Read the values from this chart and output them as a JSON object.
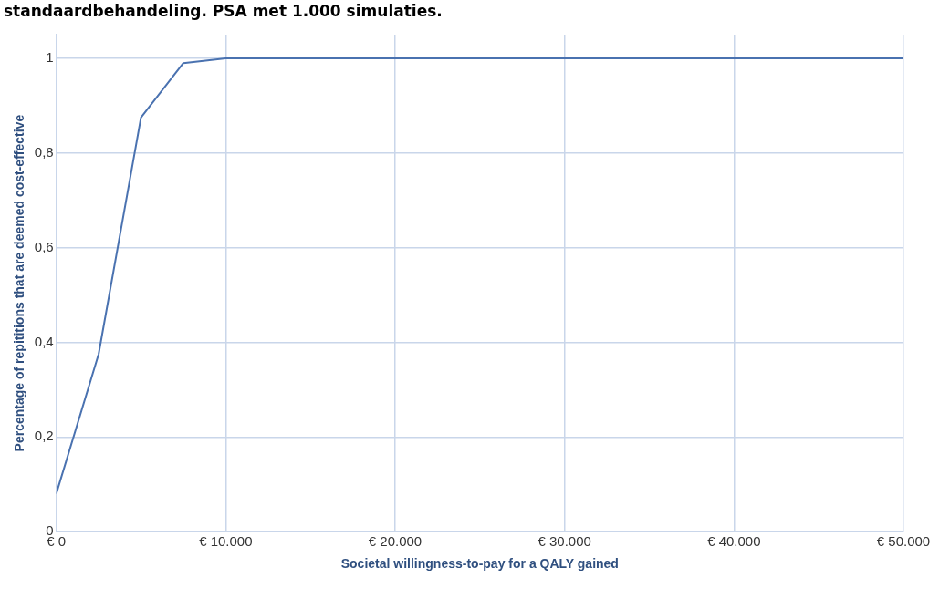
{
  "chart_data": {
    "type": "line",
    "title": "standaardbehandeling. PSA met 1.000 simulaties.",
    "xlabel": "Societal willingness-to-pay for a QALY gained",
    "ylabel": "Percentage of repititions that are deemed cost-effective",
    "x": [
      0,
      2500,
      5000,
      7500,
      10000,
      50000
    ],
    "series": [
      {
        "color": "#4a72b0",
        "values": [
          0.08,
          0.375,
          0.875,
          0.99,
          1,
          1
        ]
      }
    ],
    "xlim": [
      0,
      50000
    ],
    "xticks": [
      {
        "value": 0,
        "label": "€ 0"
      },
      {
        "value": 10000,
        "label": "€ 10.000"
      },
      {
        "value": 20000,
        "label": "€ 20.000"
      },
      {
        "value": 30000,
        "label": "€ 30.000"
      },
      {
        "value": 40000,
        "label": "€ 40.000"
      },
      {
        "value": 50000,
        "label": "€ 50.000"
      }
    ],
    "ylim": [
      0,
      1.05
    ],
    "yticks": [
      0,
      {
        "value": 0.2,
        "label": "0,2"
      },
      {
        "value": 0.4,
        "label": "0,4"
      },
      {
        "value": 0.6,
        "label": "0,6"
      },
      {
        "value": 0.8,
        "label": "0,8"
      },
      1
    ],
    "grid": true,
    "legend": false,
    "marker": "none",
    "line_style": "solid"
  }
}
